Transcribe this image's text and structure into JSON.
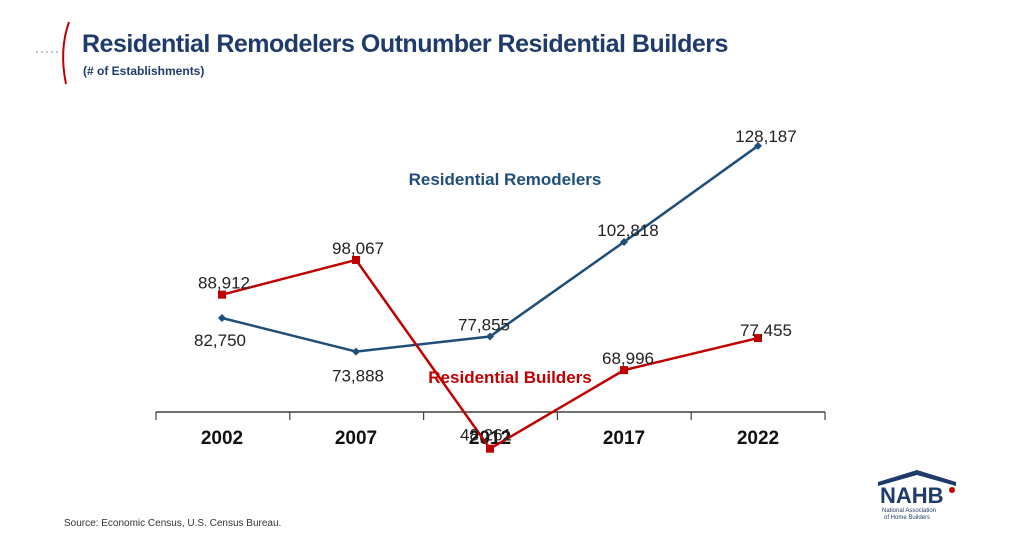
{
  "title": "Residential Remodelers Outnumber Residential Builders",
  "subtitle": "(# of Establishments)",
  "source": "Source:  Economic Census, U.S. Census Bureau.",
  "logo": {
    "name": "NAHB",
    "tagline_line1": "National Association",
    "tagline_line2": "of Home Builders"
  },
  "colors": {
    "title": "#1f3b6b",
    "remodelers": "#1f4e79",
    "builders": "#c00000",
    "axis": "#404040"
  },
  "chart_data": {
    "type": "line",
    "categories": [
      "2002",
      "2007",
      "2012",
      "2017",
      "2022"
    ],
    "series": [
      {
        "name": "Residential Remodelers",
        "values": [
          82750,
          73888,
          77855,
          102818,
          128187
        ],
        "labels": [
          "82,750",
          "73,888",
          "77,855",
          "102,818",
          "128,187"
        ],
        "color": "#1f4e79",
        "marker": "diamond"
      },
      {
        "name": "Residential Builders",
        "values": [
          88912,
          98067,
          48261,
          68996,
          77455
        ],
        "labels": [
          "88,912",
          "98,067",
          "48,261",
          "68,996",
          "77,455"
        ],
        "color": "#c00000",
        "marker": "square"
      }
    ],
    "ylim": [
      40000,
      135000
    ],
    "grid": false,
    "legend": "inline series labels"
  }
}
